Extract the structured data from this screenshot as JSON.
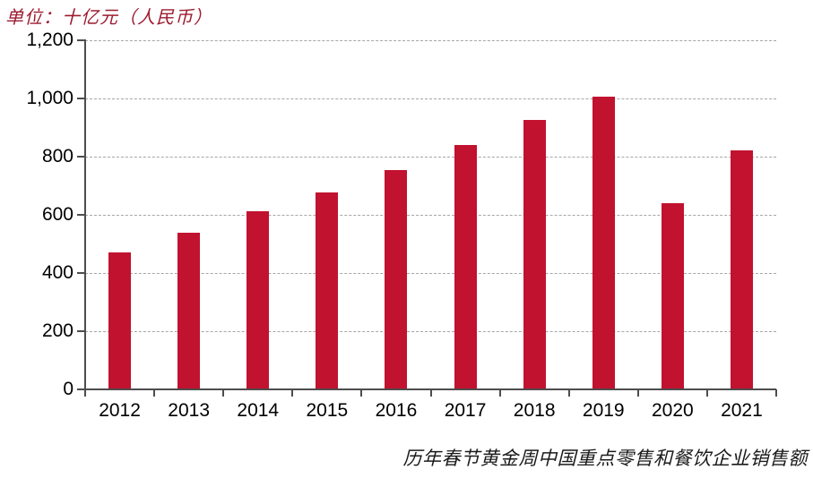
{
  "unit_label": "单位：十亿元（人民币）",
  "caption": "历年春节黄金周中国重点零售和餐饮企业销售额",
  "colors": {
    "bar": "#C1122F",
    "unit_label": "#9C1B30",
    "caption": "#1A1A1A",
    "axis": "#4D4D4D",
    "gridline": "#A6A6A6",
    "tick_label": "#000000",
    "background": "#FFFFFF"
  },
  "chart_data": {
    "type": "bar",
    "title": "历年春节黄金周中国重点零售和餐饮企业销售额",
    "unit": "单位：十亿元（人民币）",
    "categories": [
      "2012",
      "2013",
      "2014",
      "2015",
      "2016",
      "2017",
      "2018",
      "2019",
      "2020",
      "2021"
    ],
    "values": [
      470,
      539,
      611,
      678,
      754,
      840,
      926,
      1005,
      640,
      821
    ],
    "xlabel": "",
    "ylabel": "十亿元（人民币）",
    "ylim": [
      0,
      1200
    ],
    "ytick_step": 200,
    "ytick_labels": [
      "0",
      "200",
      "400",
      "600",
      "800",
      "1,000",
      "1,200"
    ],
    "grid": "horizontal-dashed",
    "legend": "none",
    "bar_color": "#C1122F"
  }
}
